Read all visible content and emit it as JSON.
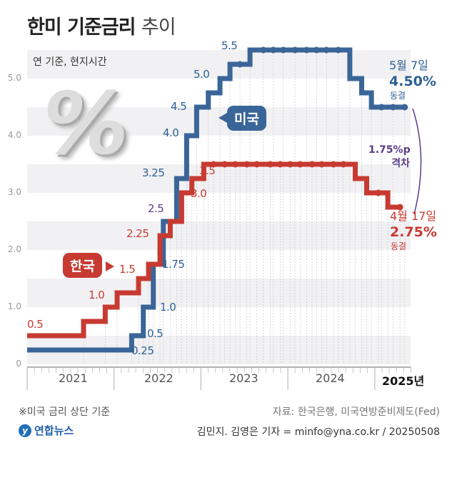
{
  "title": {
    "bold": "한미 기준금리",
    "light": "추이"
  },
  "note_top": "연 기준, 현지시간",
  "chart_data": {
    "type": "line",
    "subtype": "step",
    "ylim": [
      0,
      5.5
    ],
    "yticks": [
      "0",
      "1.0",
      "2.0",
      "3.0",
      "4.0",
      "5.0"
    ],
    "xticks": [
      "2021",
      "2022",
      "2023",
      "2024",
      "2025년"
    ],
    "xlim": [
      "2021-01-01",
      "2025-06-01"
    ],
    "grid": "horizontal bands",
    "colors": {
      "us": "#3a6598",
      "korea": "#c73a32",
      "gap": "#5a3d8a"
    },
    "series": [
      {
        "name": "미국",
        "end": "2025-05-07",
        "steps": [
          [
            "2021-01-01",
            0.25
          ],
          [
            "2022-03-16",
            0.5
          ],
          [
            "2022-05-04",
            1.0
          ],
          [
            "2022-06-15",
            1.75
          ],
          [
            "2022-07-27",
            2.5
          ],
          [
            "2022-09-21",
            3.25
          ],
          [
            "2022-11-02",
            4.0
          ],
          [
            "2022-12-14",
            4.5
          ],
          [
            "2023-02-01",
            4.75
          ],
          [
            "2023-03-22",
            5.0
          ],
          [
            "2023-05-03",
            5.25
          ],
          [
            "2023-07-26",
            5.5
          ],
          [
            "2024-09-18",
            5.0
          ],
          [
            "2024-11-07",
            4.75
          ],
          [
            "2024-12-18",
            4.5
          ]
        ],
        "holds": [
          [
            "2023-06-14",
            5.25
          ],
          [
            "2023-09-20",
            5.5
          ],
          [
            "2023-11-01",
            5.5
          ],
          [
            "2023-12-13",
            5.5
          ],
          [
            "2024-01-31",
            5.5
          ],
          [
            "2024-03-20",
            5.5
          ],
          [
            "2024-05-01",
            5.5
          ],
          [
            "2024-06-12",
            5.5
          ],
          [
            "2024-07-31",
            5.5
          ],
          [
            "2025-01-29",
            4.5
          ],
          [
            "2025-03-19",
            4.5
          ],
          [
            "2025-05-07",
            4.5
          ]
        ],
        "labels": [
          "0.25",
          "0.5",
          "1.0",
          "1.75",
          "2.5",
          "3.25",
          "4.0",
          "4.5",
          "5.0",
          "5.5"
        ]
      },
      {
        "name": "한국",
        "end": "2025-04-17",
        "steps": [
          [
            "2021-01-01",
            0.5
          ],
          [
            "2021-08-26",
            0.75
          ],
          [
            "2021-11-25",
            1.0
          ],
          [
            "2022-01-14",
            1.25
          ],
          [
            "2022-04-14",
            1.5
          ],
          [
            "2022-05-26",
            1.75
          ],
          [
            "2022-07-13",
            2.25
          ],
          [
            "2022-08-25",
            2.5
          ],
          [
            "2022-10-12",
            3.0
          ],
          [
            "2022-11-24",
            3.25
          ],
          [
            "2023-01-13",
            3.5
          ],
          [
            "2024-10-11",
            3.25
          ],
          [
            "2024-11-28",
            3.0
          ],
          [
            "2025-02-25",
            2.75
          ]
        ],
        "holds": [
          [
            "2023-02-23",
            3.5
          ],
          [
            "2023-04-11",
            3.5
          ],
          [
            "2023-05-25",
            3.5
          ],
          [
            "2023-07-13",
            3.5
          ],
          [
            "2023-08-24",
            3.5
          ],
          [
            "2023-10-19",
            3.5
          ],
          [
            "2023-11-30",
            3.5
          ],
          [
            "2024-01-11",
            3.5
          ],
          [
            "2024-02-22",
            3.5
          ],
          [
            "2024-04-12",
            3.5
          ],
          [
            "2024-05-23",
            3.5
          ],
          [
            "2024-07-11",
            3.5
          ],
          [
            "2024-08-22",
            3.5
          ],
          [
            "2025-01-16",
            3.0
          ],
          [
            "2025-04-17",
            2.75
          ]
        ],
        "labels": [
          "0.5",
          "1.0",
          "1.5",
          "2.25",
          "3.0",
          "3.5"
        ]
      }
    ],
    "annotations": {
      "us": {
        "date": "5월 7일",
        "value": "4.50%",
        "status": "동결"
      },
      "korea": {
        "date": "4월 17일",
        "value": "2.75%",
        "status": "동결"
      },
      "gap": {
        "value": "1.75%p",
        "label": "격차"
      }
    }
  },
  "footnote": "※미국 금리 상단 기준",
  "source": "자료: 한국은행, 미국연방준비제도(Fed)",
  "credit": "김민지. 김영은 기자 = minfo@yna.co.kr / 20250508",
  "logo": "연합뉴스"
}
